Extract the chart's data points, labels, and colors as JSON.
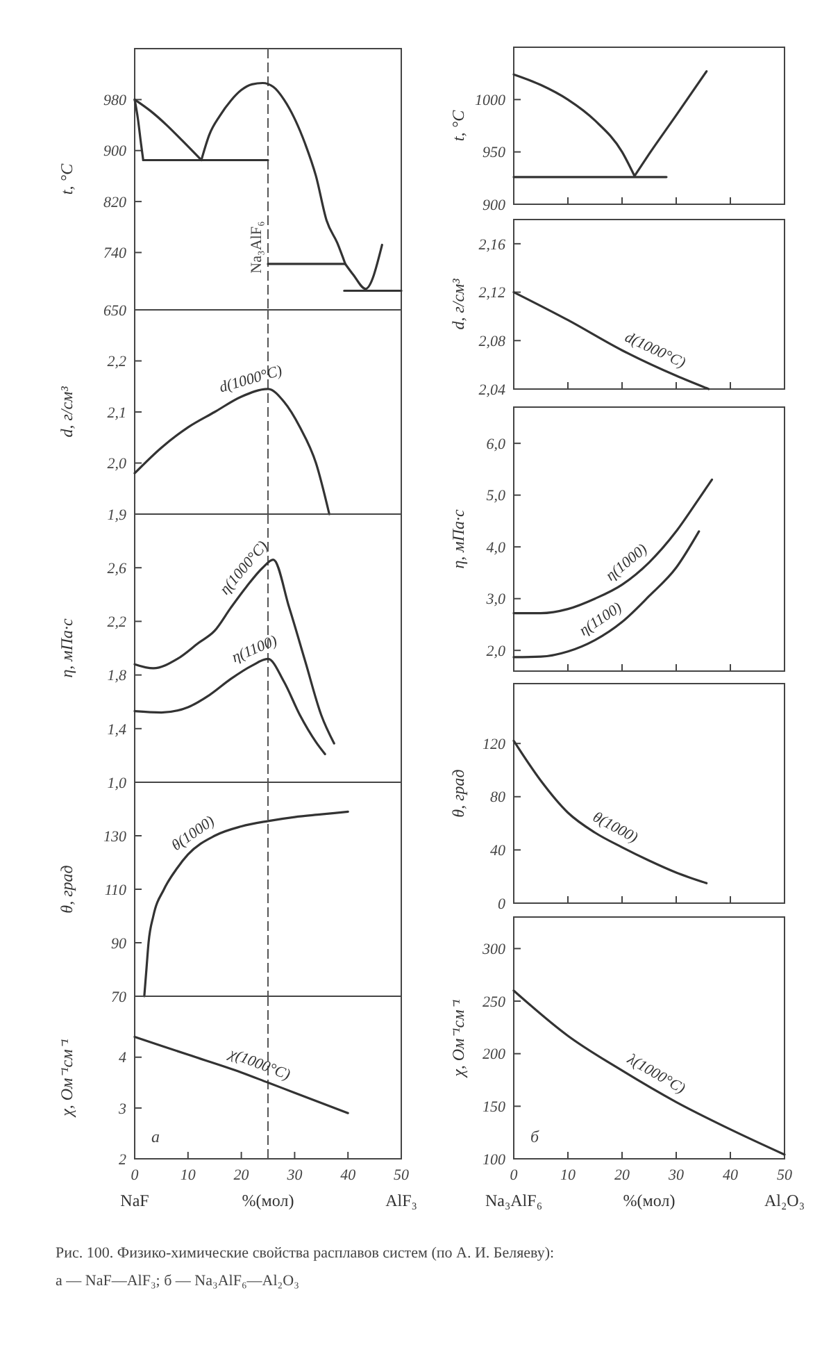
{
  "chart_data": [
    {
      "type": "line",
      "ylabel": "t, °C",
      "xlim": [
        0,
        50
      ],
      "ylim": [
        650,
        1060
      ],
      "yticks": [
        650,
        740,
        820,
        900,
        980
      ],
      "tick_labels": "y",
      "ref_lines": [
        {
          "axis": "x",
          "value": 25,
          "label": "Na₃AlF₆",
          "line_style": "dashed"
        }
      ],
      "series": [
        {
          "color": "#333333",
          "x": [
            0,
            3,
            6,
            9,
            12.5
          ],
          "values": [
            980,
            962,
            940,
            915,
            885
          ]
        },
        {
          "color": "#333333",
          "x": [
            0,
            0.6,
            1.2,
            1.6
          ],
          "values": [
            980,
            950,
            910,
            885
          ]
        },
        {
          "color": "#333333",
          "x": [
            1.6,
            25
          ],
          "values": [
            885,
            885
          ]
        },
        {
          "color": "#333333",
          "x": [
            12.5,
            14,
            16,
            18,
            20,
            22,
            24,
            26,
            28,
            30,
            32,
            34,
            36,
            38,
            39.5
          ],
          "values": [
            885,
            925,
            955,
            978,
            995,
            1004,
            1006,
            1000,
            980,
            950,
            910,
            860,
            790,
            755,
            722
          ]
        },
        {
          "color": "#333333",
          "x": [
            25,
            39.5
          ],
          "values": [
            722,
            722
          ]
        },
        {
          "color": "#333333",
          "x": [
            39.5,
            41,
            43.3,
            46.4
          ],
          "values": [
            722,
            705,
            683,
            752
          ]
        },
        {
          "color": "#333333",
          "x": [
            39.3,
            50
          ],
          "values": [
            680,
            680
          ]
        }
      ]
    },
    {
      "type": "line",
      "ylabel": "d, г/см³",
      "xlim": [
        0,
        50
      ],
      "ylim": [
        1.9,
        2.3
      ],
      "yticks": [
        {
          "value": 1.9,
          "label": "1,9"
        },
        {
          "value": 2.0,
          "label": "2,0"
        },
        {
          "value": 2.1,
          "label": "2,1"
        },
        {
          "value": 2.2,
          "label": "2,2"
        }
      ],
      "tick_labels": "y",
      "ref_lines": [
        {
          "axis": "x",
          "value": 25,
          "label": null,
          "line_style": "dashed"
        }
      ],
      "series": [
        {
          "name": "d(1000°C)",
          "color": "#333333",
          "x": [
            0,
            5,
            10,
            15,
            20,
            25,
            28,
            31,
            34,
            36.5
          ],
          "values": [
            1.98,
            2.03,
            2.07,
            2.1,
            2.13,
            2.145,
            2.12,
            2.07,
            2.0,
            1.9
          ]
        }
      ]
    },
    {
      "type": "line",
      "ylabel": "η, мПа·с",
      "xlim": [
        0,
        50
      ],
      "ylim": [
        1.0,
        3.0
      ],
      "yticks": [
        {
          "value": 1.0,
          "label": "1,0"
        },
        {
          "value": 1.4,
          "label": "1,4"
        },
        {
          "value": 1.8,
          "label": "1,8"
        },
        {
          "value": 2.2,
          "label": "2,2"
        },
        {
          "value": 2.6,
          "label": "2,6"
        }
      ],
      "tick_labels": "y",
      "ref_lines": [
        {
          "axis": "x",
          "value": 25,
          "label": null,
          "line_style": "dashed"
        }
      ],
      "series": [
        {
          "name": "η(1000°C)",
          "color": "#333333",
          "x": [
            0,
            3.5,
            8,
            12,
            15,
            18,
            21,
            24,
            26,
            29,
            32,
            35,
            37.4
          ],
          "values": [
            1.88,
            1.85,
            1.92,
            2.04,
            2.13,
            2.3,
            2.46,
            2.6,
            2.66,
            2.3,
            1.9,
            1.5,
            1.29
          ]
        },
        {
          "name": "η(1100)",
          "color": "#333333",
          "x": [
            0,
            5,
            10,
            14,
            18,
            22,
            25,
            28,
            31,
            34,
            35.7
          ],
          "values": [
            1.53,
            1.52,
            1.56,
            1.65,
            1.77,
            1.87,
            1.92,
            1.75,
            1.5,
            1.3,
            1.21
          ]
        }
      ]
    },
    {
      "type": "line",
      "ylabel": "θ, град",
      "xlim": [
        0,
        50
      ],
      "ylim": [
        70,
        150
      ],
      "yticks": [
        70,
        90,
        110,
        130
      ],
      "tick_labels": "y",
      "ref_lines": [
        {
          "axis": "x",
          "value": 25,
          "label": null,
          "line_style": "dashed"
        }
      ],
      "series": [
        {
          "name": "θ(1000)",
          "color": "#333333",
          "x": [
            1.8,
            2.2,
            2.6,
            3.5,
            5.5,
            8,
            10,
            15,
            20,
            25,
            30,
            35,
            40
          ],
          "values": [
            70,
            80,
            90,
            100,
            110,
            118,
            123,
            130,
            133.5,
            135.5,
            137,
            138,
            139
          ]
        }
      ]
    },
    {
      "type": "line",
      "ylabel": "χ, Ом⁻¹см⁻¹",
      "xlabel": "%(мол)",
      "xlim": [
        0,
        50
      ],
      "ylim": [
        2,
        5.2
      ],
      "yticks": [
        2,
        3,
        4
      ],
      "xticks": [
        0,
        10,
        20,
        30,
        40,
        50
      ],
      "ref_lines": [
        {
          "axis": "x",
          "value": 25,
          "label": null,
          "line_style": "dashed"
        }
      ],
      "annotations": [
        "а",
        "NaF",
        "AlF₃"
      ],
      "series": [
        {
          "name": "χ(1000°C)",
          "color": "#333333",
          "x": [
            0,
            10,
            20,
            25,
            30,
            40
          ],
          "values": [
            4.4,
            4.05,
            3.7,
            3.5,
            3.3,
            2.9
          ]
        }
      ]
    },
    {
      "type": "line",
      "ylabel": "t, °C",
      "xlim": [
        0,
        50
      ],
      "ylim": [
        900,
        1050
      ],
      "yticks": [
        900,
        950,
        1000
      ],
      "xticks": [
        10,
        20,
        30,
        40
      ],
      "tick_labels": "y",
      "series": [
        {
          "color": "#333333",
          "x": [
            0,
            5,
            10,
            15,
            20,
            22.3
          ],
          "values": [
            1024,
            1014,
            1000,
            980,
            950,
            927
          ]
        },
        {
          "color": "#333333",
          "x": [
            22.3,
            25,
            30,
            35.6
          ],
          "values": [
            927,
            948,
            985,
            1027
          ]
        },
        {
          "color": "#333333",
          "x": [
            0,
            28.2
          ],
          "values": [
            926,
            926
          ]
        }
      ]
    },
    {
      "type": "line",
      "ylabel": "d, г/см³",
      "xlim": [
        0,
        50
      ],
      "ylim": [
        2.04,
        2.18
      ],
      "yticks": [
        {
          "value": 2.04,
          "label": "2,04"
        },
        {
          "value": 2.08,
          "label": "2,08"
        },
        {
          "value": 2.12,
          "label": "2,12"
        },
        {
          "value": 2.16,
          "label": "2,16"
        }
      ],
      "xticks": [
        10,
        20,
        30,
        40
      ],
      "tick_labels": "y",
      "series": [
        {
          "name": "d(1000°C)",
          "color": "#333333",
          "x": [
            0,
            10,
            20,
            30,
            36
          ],
          "values": [
            2.12,
            2.097,
            2.072,
            2.051,
            2.04
          ]
        }
      ]
    },
    {
      "type": "line",
      "ylabel": "η, мПа·с",
      "xlim": [
        0,
        50
      ],
      "ylim": [
        1.6,
        6.7
      ],
      "yticks": [
        {
          "value": 2,
          "label": "2,0"
        },
        {
          "value": 3,
          "label": "3,0"
        },
        {
          "value": 4,
          "label": "4,0"
        },
        {
          "value": 5,
          "label": "5,0"
        },
        {
          "value": 6,
          "label": "6,0"
        }
      ],
      "xticks": [
        10,
        20,
        30,
        40
      ],
      "tick_labels": "y",
      "series": [
        {
          "name": "η(1000)",
          "color": "#333333",
          "x": [
            0,
            5,
            10,
            15,
            20,
            25,
            30,
            34,
            36.6
          ],
          "values": [
            2.72,
            2.72,
            2.8,
            3.0,
            3.27,
            3.7,
            4.3,
            4.9,
            5.3
          ]
        },
        {
          "name": "η(1100)",
          "color": "#333333",
          "x": [
            0,
            5,
            10,
            15,
            20,
            25,
            30,
            34.2
          ],
          "values": [
            1.87,
            1.88,
            1.98,
            2.2,
            2.55,
            3.05,
            3.6,
            4.3
          ]
        }
      ]
    },
    {
      "type": "line",
      "ylabel": "θ, град",
      "xlim": [
        0,
        50
      ],
      "ylim": [
        0,
        165
      ],
      "yticks": [
        0,
        40,
        80,
        120
      ],
      "xticks": [
        10,
        20,
        30,
        40
      ],
      "tick_labels": "y",
      "series": [
        {
          "name": "θ(1000)",
          "color": "#333333",
          "x": [
            0,
            5,
            10,
            15,
            20,
            25,
            30,
            35.6
          ],
          "values": [
            122,
            92,
            68,
            53,
            42,
            32,
            23,
            15
          ]
        }
      ]
    },
    {
      "type": "line",
      "ylabel": "χ, Ом⁻¹см⁻¹",
      "xlabel": "%(мол)",
      "xlim": [
        0,
        50
      ],
      "ylim": [
        100,
        330
      ],
      "yticks": [
        100,
        150,
        200,
        250,
        300
      ],
      "xticks": [
        0,
        10,
        20,
        30,
        40,
        50
      ],
      "annotations": [
        "б",
        "Na₃AlF₆",
        "Al₂O₃",
        "Рис. 100. Физико-химические свойства расплавов систем (по А. И. Беляеву):",
        "а — NaF—AlF₃; б — Na₃AlF₆—Al₂O₃"
      ],
      "series": [
        {
          "name": "λ(1000°C)",
          "color": "#333333",
          "x": [
            0,
            10,
            20,
            30,
            40,
            50
          ],
          "values": [
            260,
            217,
            184,
            154,
            128,
            104
          ]
        }
      ]
    }
  ]
}
